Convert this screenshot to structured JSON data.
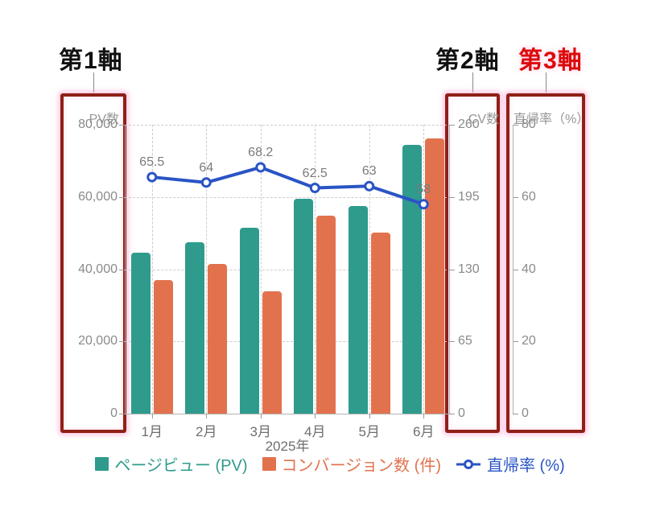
{
  "callouts": {
    "axis1": "第1軸",
    "axis2": "第2軸",
    "axis3": "第3軸"
  },
  "colors": {
    "callout_axis3_red": "#dc0a0a",
    "highlight_box_border": "#8f2016",
    "highlight_glow": "rgba(255,150,205,0.5)",
    "grid": "#cccccc",
    "axis_line": "#b3b3b3",
    "tick_text": "#8a8a8a",
    "point_label_text": "#7b7b7b",
    "pv_bar": "#2e9b8d",
    "cv_bar": "#e2724e",
    "rate_line": "#2a54c5"
  },
  "chart_data": {
    "type": "bar",
    "subtype": "combo-bar-line-3axis",
    "categories": [
      "1月",
      "2月",
      "3月",
      "4月",
      "5月",
      "6月"
    ],
    "x_axis_title": "2025年",
    "series": [
      {
        "name": "ページビュー (PV)",
        "type": "bar",
        "axis": "y1",
        "color": "#2e9b8d",
        "values": [
          44500,
          47500,
          51500,
          59500,
          57500,
          74500
        ]
      },
      {
        "name": "コンバージョン数 (件)",
        "type": "bar",
        "axis": "y2",
        "color": "#e2724e",
        "values": [
          120,
          135,
          110,
          178,
          163,
          248
        ]
      },
      {
        "name": "直帰率 (%)",
        "type": "line",
        "axis": "y3",
        "color": "#2a54c5",
        "values": [
          65.5,
          64,
          68.2,
          62.5,
          63,
          58
        ],
        "point_labels": [
          "65.5",
          "64",
          "68.2",
          "62.5",
          "63",
          "58"
        ]
      }
    ],
    "axes": {
      "y1": {
        "title": "PV数",
        "max": 80000,
        "ticks": [
          {
            "label": "80,000",
            "value": 80000
          },
          {
            "label": "60,000",
            "value": 60000
          },
          {
            "label": "40,000",
            "value": 40000
          },
          {
            "label": "20,000",
            "value": 20000
          },
          {
            "label": "0",
            "value": 0
          }
        ]
      },
      "y2": {
        "title": "CV数",
        "max": 260,
        "ticks": [
          {
            "label": "260",
            "value": 260
          },
          {
            "label": "195",
            "value": 195
          },
          {
            "label": "130",
            "value": 130
          },
          {
            "label": "65",
            "value": 65
          },
          {
            "label": "0",
            "value": 0
          }
        ]
      },
      "y3": {
        "title": "直帰率（%）",
        "max": 80,
        "ticks": [
          {
            "label": "80",
            "value": 80
          },
          {
            "label": "60",
            "value": 60
          },
          {
            "label": "40",
            "value": 40
          },
          {
            "label": "20",
            "value": 20
          },
          {
            "label": "0",
            "value": 0
          }
        ]
      }
    },
    "grid": "dashed, horizontal and vertical",
    "legend_position": "bottom"
  }
}
